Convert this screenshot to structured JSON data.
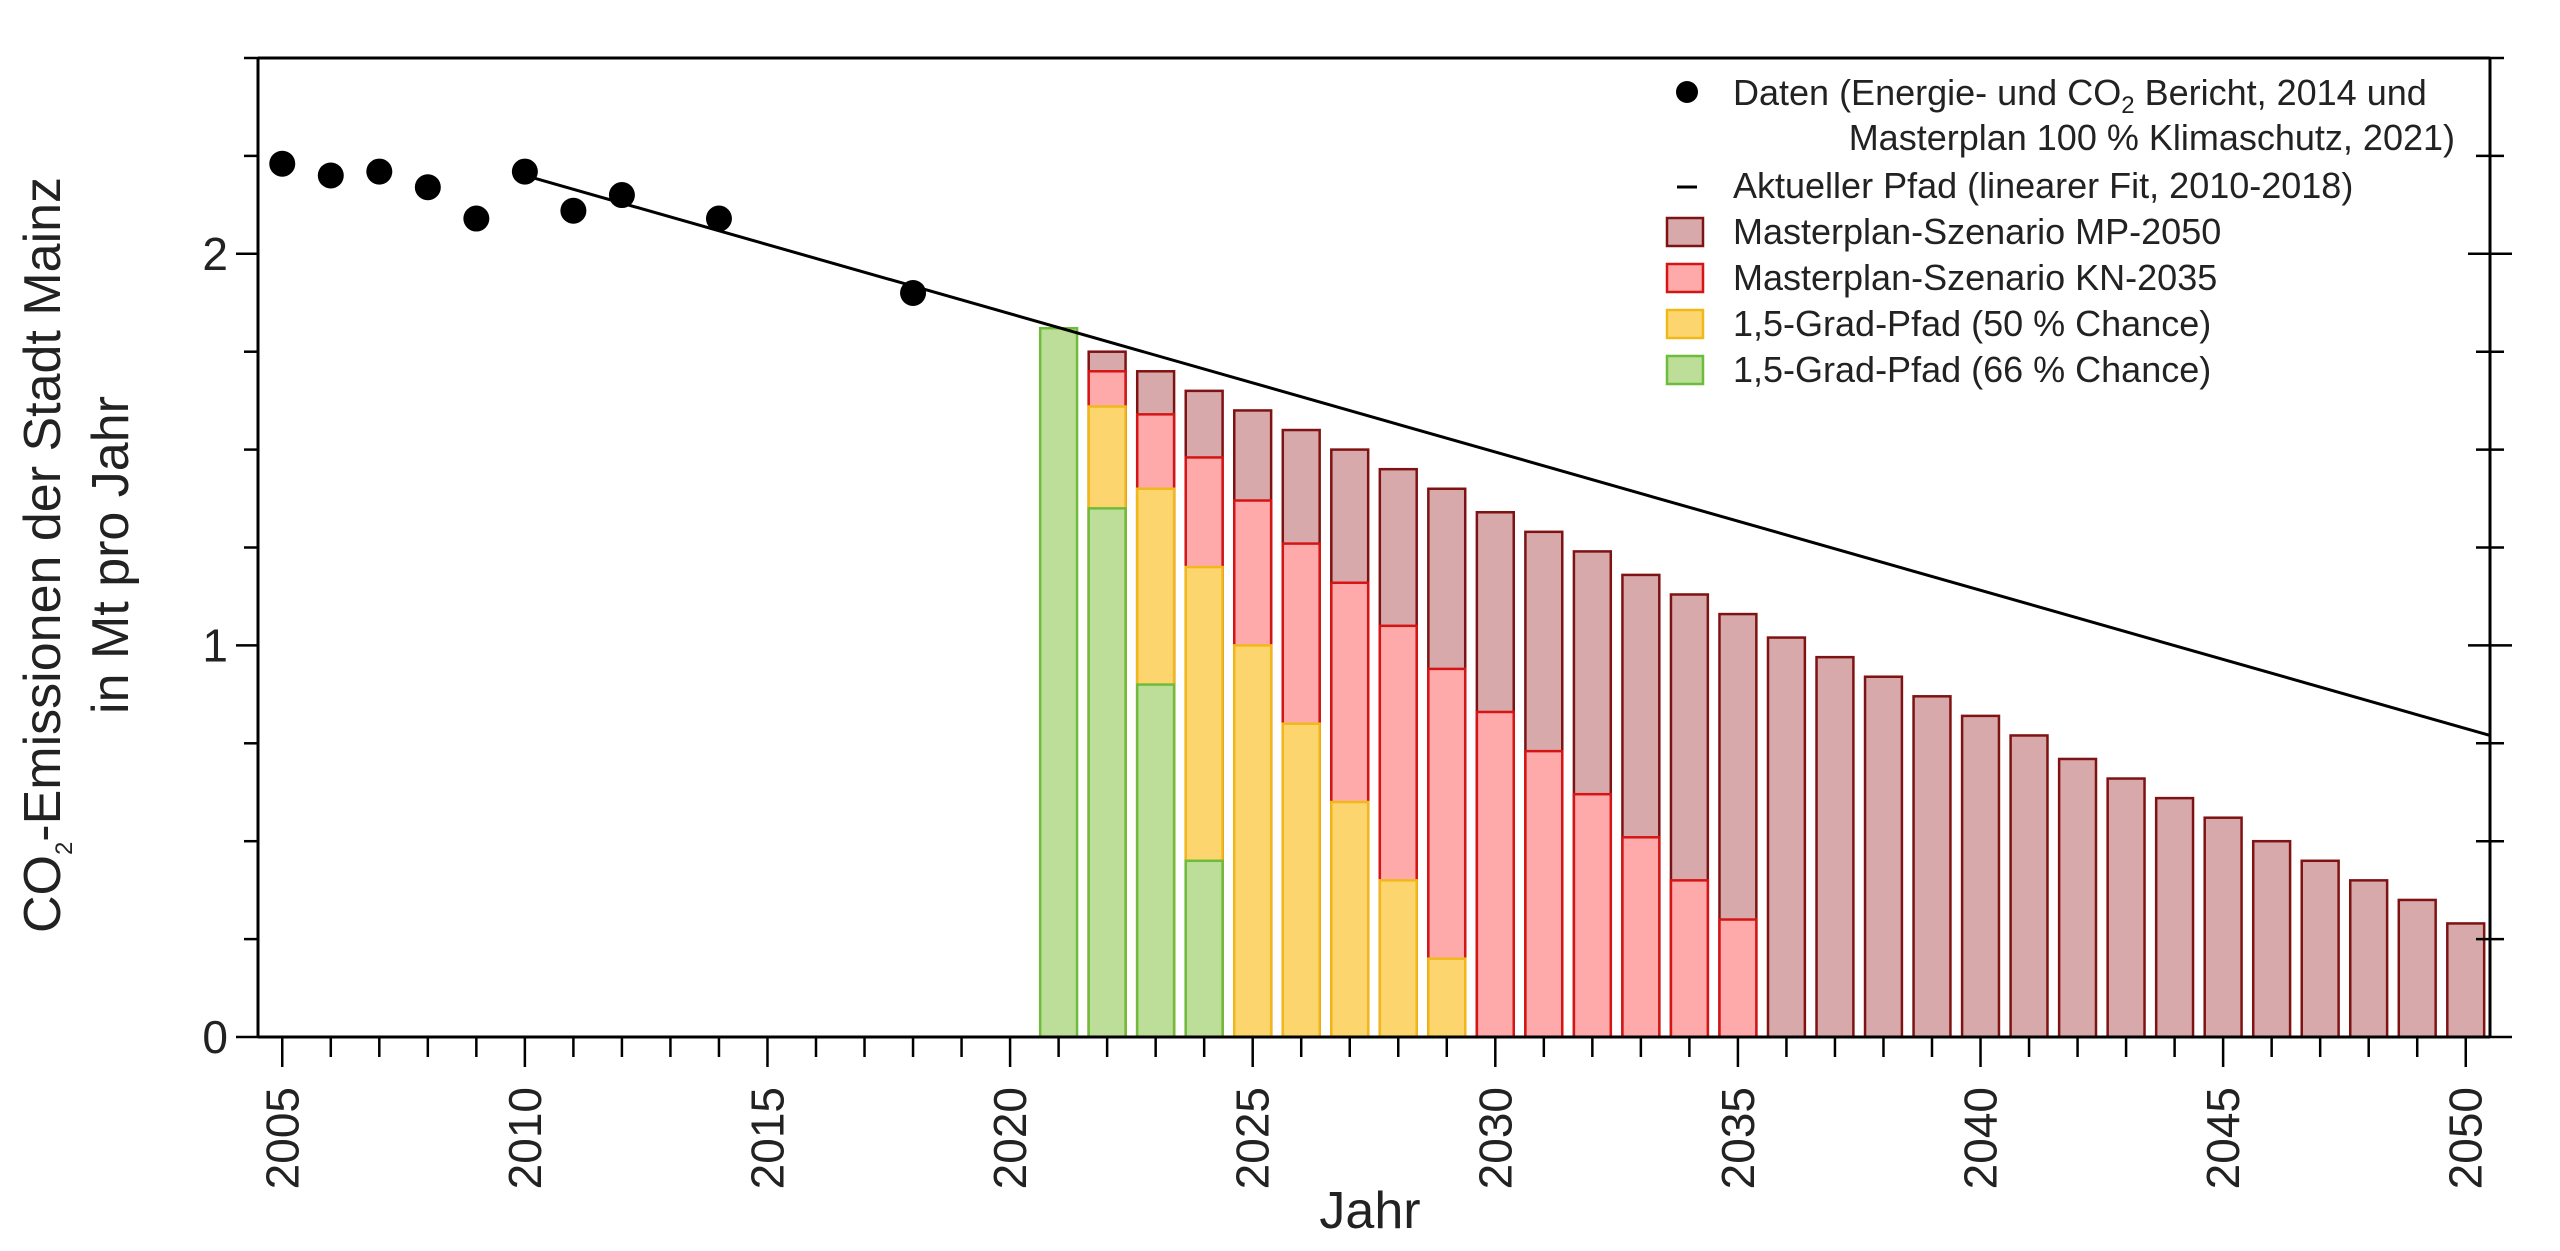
{
  "chart_data": {
    "type": "bar",
    "xlabel": "Jahr",
    "ylabel_line1_prefix": "CO",
    "ylabel_line1_sub": "2",
    "ylabel_line1_suffix": "-Emissionen der Stadt Mainz",
    "ylabel_line2": "in Mt pro Jahr",
    "xlim": [
      2004.5,
      2050.5
    ],
    "ylim": [
      0,
      2.5
    ],
    "x_ticks": [
      2005,
      2010,
      2015,
      2020,
      2025,
      2030,
      2035,
      2040,
      2045,
      2050
    ],
    "y_ticks": [
      0,
      1,
      2
    ],
    "legend_position": "top-right",
    "grid": false,
    "colors": {
      "points": "#000000",
      "line": "#000000",
      "mp2050_fill": "#d8a9ab",
      "mp2050_edge": "#7f1212",
      "kn2035_fill": "#ffaaaa",
      "kn2035_edge": "#d51515",
      "p50_fill": "#fdd56f",
      "p50_edge": "#f1b81a",
      "p66_fill": "#bcde98",
      "p66_edge": "#6fbb3c"
    },
    "data_points": {
      "name_part1": "Daten (Energie- und CO",
      "name_sub": "2",
      "name_part2": " Bericht, 2014 und",
      "name_line2": "Masterplan 100 % Klimaschutz, 2021)",
      "x": [
        2005,
        2006,
        2007,
        2008,
        2009,
        2010,
        2011,
        2012,
        2014,
        2018
      ],
      "y": [
        2.23,
        2.2,
        2.21,
        2.17,
        2.09,
        2.21,
        2.11,
        2.15,
        2.09,
        1.9
      ]
    },
    "trend_line": {
      "name": "Aktueller Pfad (linearer Fit, 2010-2018)",
      "x": [
        2010,
        2050.5
      ],
      "y": [
        2.2,
        0.77
      ]
    },
    "series": [
      {
        "name": "Masterplan-Szenario MP-2050",
        "x": [
          2022,
          2023,
          2024,
          2025,
          2026,
          2027,
          2028,
          2029,
          2030,
          2031,
          2032,
          2033,
          2034,
          2035,
          2036,
          2037,
          2038,
          2039,
          2040,
          2041,
          2042,
          2043,
          2044,
          2045,
          2046,
          2047,
          2048,
          2049,
          2050
        ],
        "values": [
          1.75,
          1.7,
          1.65,
          1.6,
          1.55,
          1.5,
          1.45,
          1.4,
          1.34,
          1.29,
          1.24,
          1.18,
          1.13,
          1.08,
          1.02,
          0.97,
          0.92,
          0.87,
          0.82,
          0.77,
          0.71,
          0.66,
          0.61,
          0.56,
          0.5,
          0.45,
          0.4,
          0.35,
          0.29
        ]
      },
      {
        "name": "Masterplan-Szenario KN-2035",
        "x": [
          2022,
          2023,
          2024,
          2025,
          2026,
          2027,
          2028,
          2029,
          2030,
          2031,
          2032,
          2033,
          2034,
          2035
        ],
        "values": [
          1.7,
          1.59,
          1.48,
          1.37,
          1.26,
          1.16,
          1.05,
          0.94,
          0.83,
          0.73,
          0.62,
          0.51,
          0.4,
          0.3
        ]
      },
      {
        "name": "1,5-Grad-Pfad (50 % Chance)",
        "x": [
          2022,
          2023,
          2024,
          2025,
          2026,
          2027,
          2028,
          2029
        ],
        "values": [
          1.61,
          1.4,
          1.2,
          1.0,
          0.8,
          0.6,
          0.4,
          0.2
        ]
      },
      {
        "name": "1,5-Grad-Pfad (66 % Chance)",
        "x": [
          2021,
          2022,
          2023,
          2024
        ],
        "values": [
          1.81,
          1.35,
          0.9,
          0.45
        ]
      }
    ]
  }
}
